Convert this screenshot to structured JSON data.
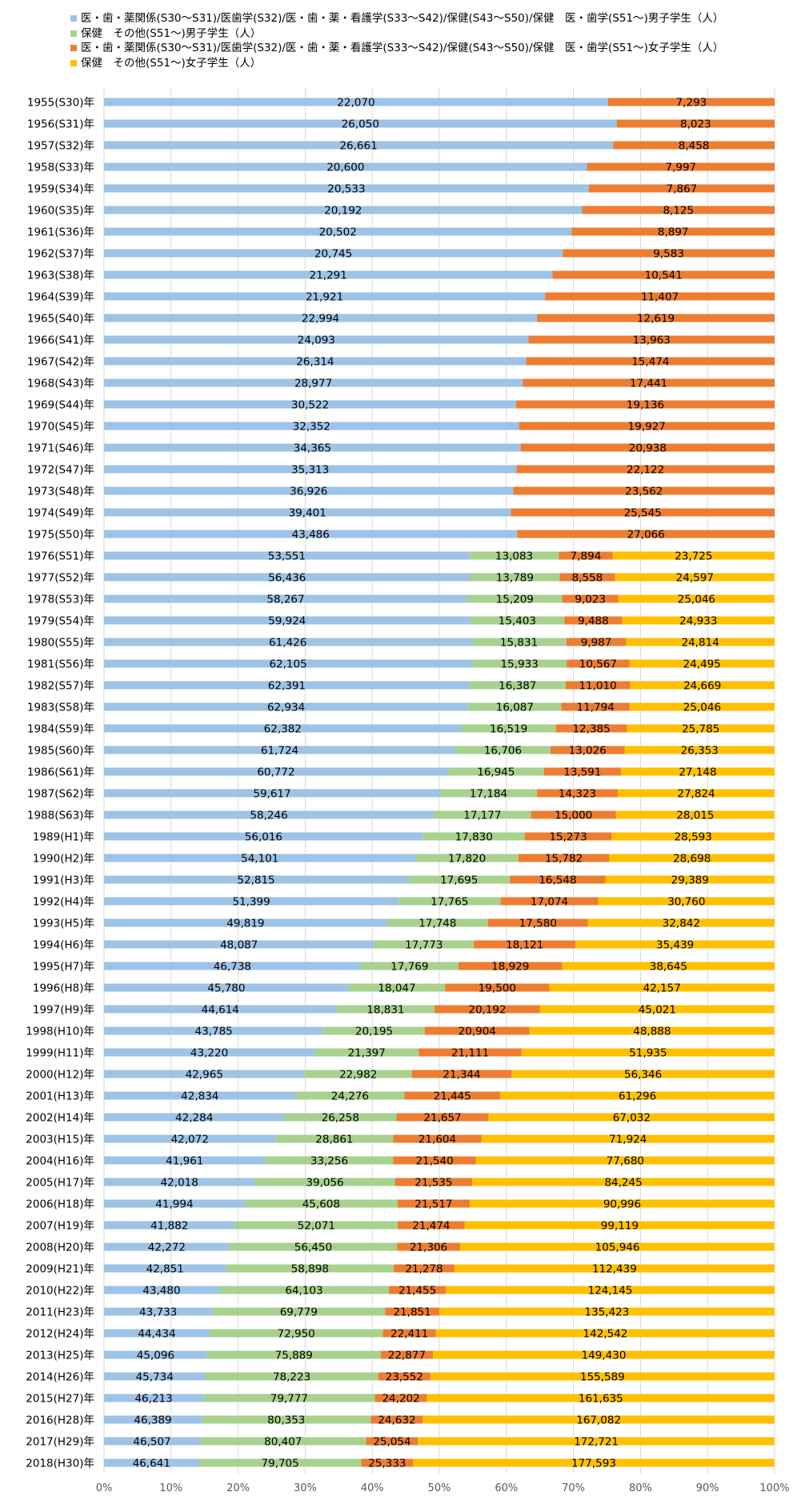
{
  "chart_data": {
    "type": "bar",
    "orientation": "horizontal",
    "stacked": "percent",
    "legend_position": "top",
    "grid": true,
    "xlim": [
      0,
      100
    ],
    "x_ticks": [
      "0%",
      "10%",
      "20%",
      "30%",
      "40%",
      "50%",
      "60%",
      "70%",
      "80%",
      "90%",
      "100%"
    ],
    "categories": [
      "1955(S30)年",
      "1956(S31)年",
      "1957(S32)年",
      "1958(S33)年",
      "1959(S34)年",
      "1960(S35)年",
      "1961(S36)年",
      "1962(S37)年",
      "1963(S38)年",
      "1964(S39)年",
      "1965(S40)年",
      "1966(S41)年",
      "1967(S42)年",
      "1968(S43)年",
      "1969(S44)年",
      "1970(S45)年",
      "1971(S46)年",
      "1972(S47)年",
      "1973(S48)年",
      "1974(S49)年",
      "1975(S50)年",
      "1976(S51)年",
      "1977(S52)年",
      "1978(S53)年",
      "1979(S54)年",
      "1980(S55)年",
      "1981(S56)年",
      "1982(S57)年",
      "1983(S58)年",
      "1984(S59)年",
      "1985(S60)年",
      "1986(S61)年",
      "1987(S62)年",
      "1988(S63)年",
      "1989(H1)年",
      "1990(H2)年",
      "1991(H3)年",
      "1992(H4)年",
      "1993(H5)年",
      "1994(H6)年",
      "1995(H7)年",
      "1996(H8)年",
      "1997(H9)年",
      "1998(H10)年",
      "1999(H11)年",
      "2000(H12)年",
      "2001(H13)年",
      "2002(H14)年",
      "2003(H15)年",
      "2004(H16)年",
      "2005(H17)年",
      "2006(H18)年",
      "2007(H19)年",
      "2008(H20)年",
      "2009(H21)年",
      "2010(H22)年",
      "2011(H23)年",
      "2012(H24)年",
      "2013(H25)年",
      "2014(H26)年",
      "2015(H27)年",
      "2016(H28)年",
      "2017(H29)年",
      "2018(H30)年"
    ],
    "series": [
      {
        "name": "医・歯・薬関係(S30～S31)/医歯学(S32)/医・歯・薬・看護学(S33～S42)/保健(S43～S50)/保健　医・歯学(S51～)男子学生（人）",
        "color": "#9dc3e6",
        "values": [
          22070,
          26050,
          26661,
          20600,
          20533,
          20192,
          20502,
          20745,
          21291,
          21921,
          22994,
          24093,
          26314,
          28977,
          30522,
          32352,
          34365,
          35313,
          36926,
          39401,
          43486,
          53551,
          56436,
          58267,
          59924,
          61426,
          62105,
          62391,
          62934,
          62382,
          61724,
          60772,
          59617,
          58246,
          56016,
          54101,
          52815,
          51399,
          49819,
          48087,
          46738,
          45780,
          44614,
          43785,
          43220,
          42965,
          42834,
          42284,
          42072,
          41961,
          42018,
          41994,
          41882,
          42272,
          42851,
          43480,
          43733,
          44434,
          45096,
          45734,
          46213,
          46389,
          46507,
          46641
        ]
      },
      {
        "name": "保健　その他(S51～)男子学生（人）",
        "color": "#a9d18e",
        "values": [
          null,
          null,
          null,
          null,
          null,
          null,
          null,
          null,
          null,
          null,
          null,
          null,
          null,
          null,
          null,
          null,
          null,
          null,
          null,
          null,
          null,
          13083,
          13789,
          15209,
          15403,
          15831,
          15933,
          16387,
          16087,
          16519,
          16706,
          16945,
          17184,
          17177,
          17830,
          17820,
          17695,
          17765,
          17748,
          17773,
          17769,
          18047,
          18831,
          20195,
          21397,
          22982,
          24276,
          26258,
          28861,
          33256,
          39056,
          45608,
          52071,
          56450,
          58898,
          64103,
          69779,
          72950,
          75889,
          78223,
          79777,
          80353,
          80407,
          79705
        ]
      },
      {
        "name": "医・歯・薬関係(S30～S31)/医歯学(S32)/医・歯・薬・看護学(S33～S42)/保健(S43～S50)/保健　医・歯学(S51～)女子学生（人）",
        "color": "#ed7d31",
        "values": [
          7293,
          8023,
          8458,
          7997,
          7867,
          8125,
          8897,
          9583,
          10541,
          11407,
          12619,
          13963,
          15474,
          17441,
          19136,
          19927,
          20938,
          22122,
          23562,
          25545,
          27066,
          7894,
          8558,
          9023,
          9488,
          9987,
          10567,
          11010,
          11794,
          12385,
          13026,
          13591,
          14323,
          15000,
          15273,
          15782,
          16548,
          17074,
          17580,
          18121,
          18929,
          19500,
          20192,
          20904,
          21111,
          21344,
          21445,
          21657,
          21604,
          21540,
          21535,
          21517,
          21474,
          21306,
          21278,
          21455,
          21851,
          22411,
          22877,
          23552,
          24202,
          24632,
          25054,
          25333
        ]
      },
      {
        "name": "保健　その他(S51～)女子学生（人）",
        "color": "#ffc000",
        "values": [
          null,
          null,
          null,
          null,
          null,
          null,
          null,
          null,
          null,
          null,
          null,
          null,
          null,
          null,
          null,
          null,
          null,
          null,
          null,
          null,
          null,
          23725,
          24597,
          25046,
          24933,
          24814,
          24495,
          24669,
          25046,
          25785,
          26353,
          27148,
          27824,
          28015,
          28593,
          28698,
          29389,
          30760,
          32842,
          35439,
          38645,
          42157,
          45021,
          48888,
          51935,
          56346,
          61296,
          67032,
          71924,
          77680,
          84245,
          90996,
          99119,
          105946,
          112439,
          124145,
          135423,
          142542,
          149430,
          155589,
          161635,
          167082,
          172721,
          177593
        ]
      }
    ]
  }
}
